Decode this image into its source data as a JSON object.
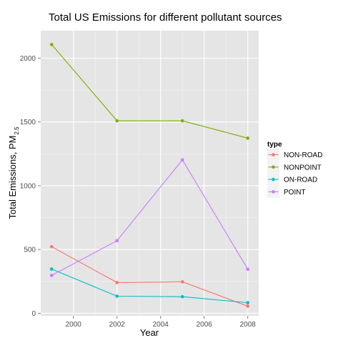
{
  "chart_data": {
    "type": "line",
    "title": "Total US Emissions for different pollutant sources",
    "xlabel": "Year",
    "ylabel": "Total Emissions, PM",
    "ylabel_subscript": "2.5",
    "legend_title": "type",
    "legend_position": "right",
    "grid": true,
    "xlim": [
      1998.5,
      2008.5
    ],
    "ylim": [
      -20,
      2215
    ],
    "x_ticks": [
      2000,
      2002,
      2004,
      2006,
      2008
    ],
    "x_tick_labels": [
      "2000",
      "2002",
      "2004",
      "2006",
      "2008"
    ],
    "y_ticks": [
      0,
      500,
      1000,
      1500,
      2000
    ],
    "y_tick_labels": [
      "0",
      "500",
      "1000",
      "1500",
      "2000"
    ],
    "x": [
      1999,
      2002,
      2005,
      2008
    ],
    "series": [
      {
        "name": "NON-ROAD",
        "color": "#f8766d",
        "values": [
          522,
          241,
          247,
          56
        ]
      },
      {
        "name": "NONPOINT",
        "color": "#7cae00",
        "values": [
          2107,
          1509,
          1509,
          1373
        ]
      },
      {
        "name": "ON-ROAD",
        "color": "#00bfc4",
        "values": [
          347,
          134,
          130,
          83
        ]
      },
      {
        "name": "POINT",
        "color": "#c77cff",
        "values": [
          297,
          569,
          1203,
          345
        ]
      }
    ]
  }
}
